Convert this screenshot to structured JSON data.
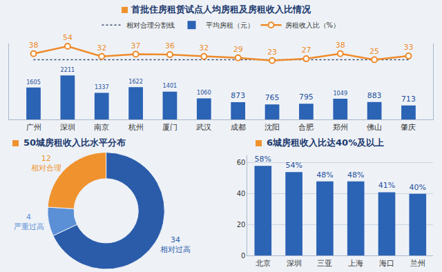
{
  "chart_data": [
    {
      "type": "combo",
      "title": "首批住房租赁试点人均房租及房租收入比情况",
      "categories": [
        "广州",
        "深圳",
        "南京",
        "杭州",
        "厦门",
        "武汉",
        "成都",
        "沈阳",
        "合肥",
        "郑州",
        "佛山",
        "肇庆"
      ],
      "series": [
        {
          "name": "相对合理分割线",
          "type": "line",
          "line_style": "dotted",
          "color": "#3a4a6b",
          "axis": "y2",
          "values": [
            25,
            25,
            25,
            25,
            25,
            25,
            25,
            25,
            25,
            25,
            25,
            25
          ]
        },
        {
          "name": "平均房租（元）",
          "type": "bar",
          "color": "#2b63b5",
          "data_labels": true,
          "values": [
            1605,
            2211,
            1337,
            1622,
            1401,
            1060,
            873,
            765,
            795,
            1049,
            883,
            713
          ]
        },
        {
          "name": "房租收入比（%）",
          "type": "line",
          "marker": "circle",
          "color": "#ef8a2a",
          "axis": "y2",
          "data_labels": true,
          "values": [
            38,
            54,
            32,
            37,
            36,
            32,
            29,
            23,
            27,
            38,
            25,
            33
          ]
        }
      ],
      "ylim": [
        0,
        3800
      ],
      "y2lim": [
        -105,
        60
      ],
      "tick_labels": "x",
      "grid": false,
      "legend": "top"
    },
    {
      "type": "donut",
      "title": "50城房租收入比水平分布",
      "categories": [
        "相对过高",
        "严重过高",
        "相对合理"
      ],
      "values": [
        34,
        4,
        12
      ],
      "colors": [
        "#2a5caa",
        "#5b8fd6",
        "#f0922e"
      ],
      "data_labels": true
    },
    {
      "type": "bar",
      "title": "6城房租收入比达40%及以上",
      "categories": [
        "北京",
        "深圳",
        "三亚",
        "上海",
        "海口",
        "兰州"
      ],
      "values": [
        58,
        54,
        48,
        48,
        41,
        40
      ],
      "value_labels": [
        "58%",
        "54%",
        "48%",
        "48%",
        "41%",
        "40%"
      ],
      "ylim": [
        0,
        65
      ],
      "yticks": [
        0,
        20,
        40,
        60
      ],
      "grid": true,
      "color": "#2b63b5",
      "data_labels": true
    }
  ]
}
